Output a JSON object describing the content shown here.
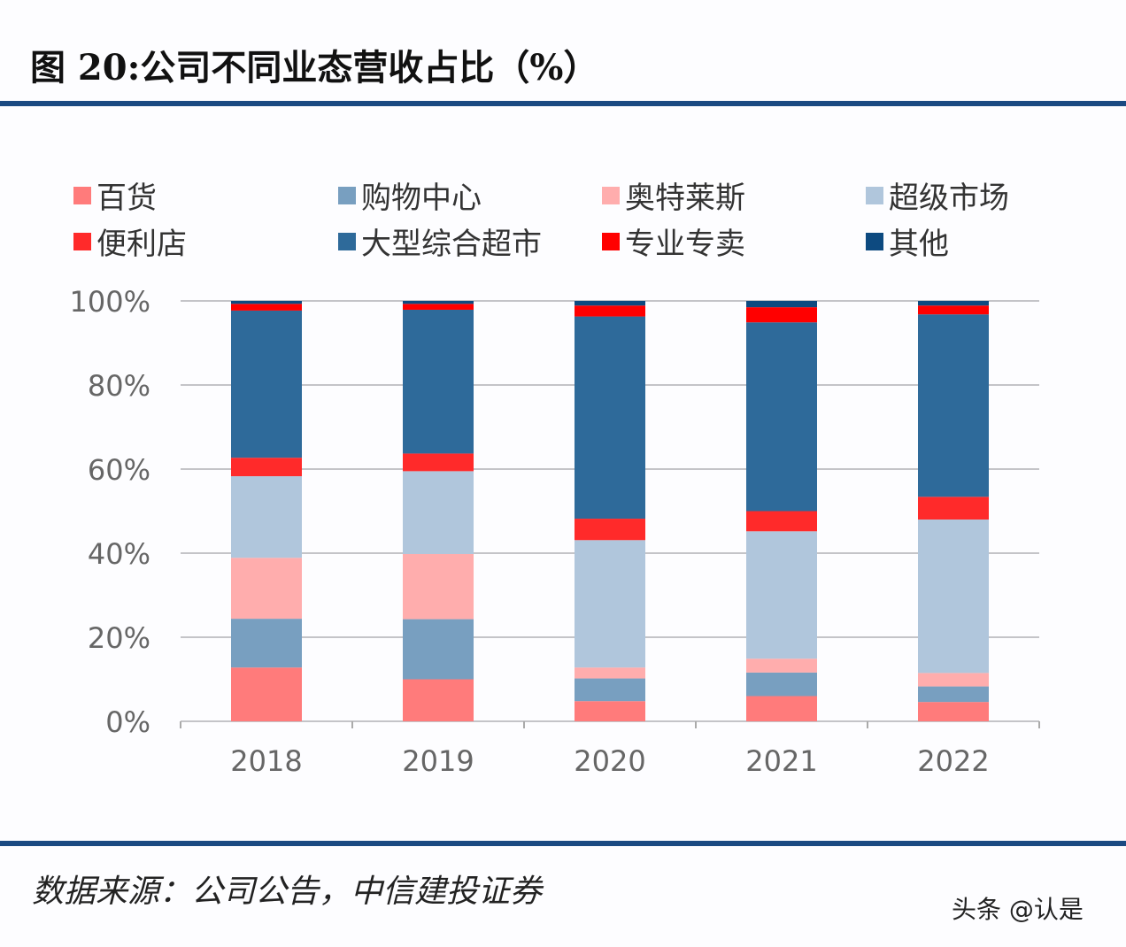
{
  "title": "图 20:公司不同业态营收占比（%）",
  "source": "数据来源：公司公告，中信建投证券",
  "watermark": "头条 @认是",
  "chart_data": {
    "type": "bar",
    "stacked": true,
    "categories": [
      "2018",
      "2019",
      "2020",
      "2021",
      "2022"
    ],
    "ylim": [
      0,
      100
    ],
    "yticks": [
      "0%",
      "20%",
      "40%",
      "60%",
      "80%",
      "100%"
    ],
    "grid": true,
    "legend_position": "top",
    "series": [
      {
        "name": "百货",
        "color": "#ff7b7b",
        "values": [
          12.8,
          10.0,
          4.8,
          6.0,
          4.6
        ]
      },
      {
        "name": "购物中心",
        "color": "#789fc0",
        "values": [
          11.6,
          14.3,
          5.4,
          5.6,
          3.7
        ]
      },
      {
        "name": "奥特莱斯",
        "color": "#ffadad",
        "values": [
          14.5,
          15.5,
          2.6,
          3.3,
          3.2
        ]
      },
      {
        "name": "超级市场",
        "color": "#b0c6dc",
        "values": [
          19.4,
          19.7,
          30.3,
          30.3,
          36.5
        ]
      },
      {
        "name": "便利店",
        "color": "#ff2a2a",
        "values": [
          4.4,
          4.2,
          5.1,
          4.8,
          5.4
        ]
      },
      {
        "name": "大型综合超市",
        "color": "#2e6a9a",
        "values": [
          35.0,
          34.2,
          48.1,
          44.9,
          43.4
        ]
      },
      {
        "name": "专业专卖",
        "color": "#ff0000",
        "values": [
          1.6,
          1.4,
          2.6,
          3.6,
          2.1
        ]
      },
      {
        "name": "其他",
        "color": "#0d4a80",
        "values": [
          0.7,
          0.7,
          1.1,
          1.5,
          1.1
        ]
      }
    ]
  }
}
